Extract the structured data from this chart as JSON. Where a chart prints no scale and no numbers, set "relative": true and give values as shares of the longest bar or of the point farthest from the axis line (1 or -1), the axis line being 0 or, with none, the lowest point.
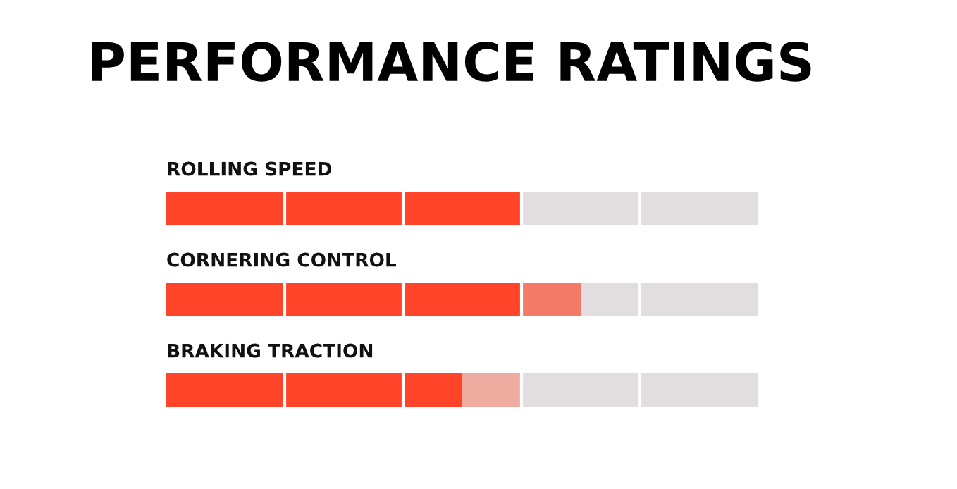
{
  "chart_data": {
    "type": "bar",
    "title": "PERFORMANCE RATINGS",
    "orientation": "horizontal",
    "stacked": true,
    "relative": true,
    "categories": [
      "ROLLING SPEED",
      "CORNERING CONTROL",
      "BRAKING TRACTION"
    ],
    "series": [
      {
        "color": "#ff4429",
        "values": [
          0.6,
          0.6,
          0.5
        ]
      },
      {
        "colors": [
          "#f47a68",
          "#f47a68",
          "#eeaca0"
        ],
        "values": [
          null,
          0.1,
          0.1
        ]
      },
      {
        "color": "#e2dedf",
        "values": [
          0.4,
          0.3,
          0.4
        ]
      }
    ],
    "ref_lines": [
      {
        "axis": "x",
        "value": 0.2,
        "color": "#ffffff"
      },
      {
        "axis": "x",
        "value": 0.4,
        "color": "#ffffff"
      },
      {
        "axis": "x",
        "value": 0.6,
        "color": "#ffffff"
      },
      {
        "axis": "x",
        "value": 0.8,
        "color": "#ffffff"
      }
    ]
  }
}
